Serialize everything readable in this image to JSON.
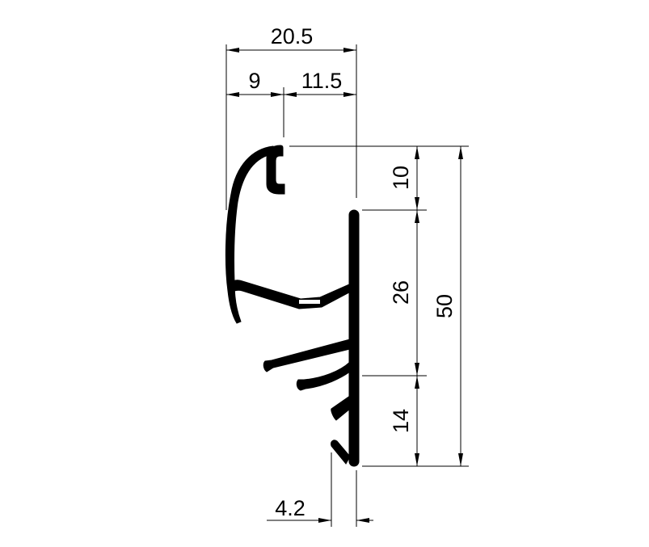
{
  "dimensions": {
    "total_width": "20.5",
    "left_width": "9",
    "right_width": "11.5",
    "top_height": "10",
    "middle_height": "26",
    "bottom_height": "14",
    "total_height": "50",
    "bottom_offset": "4.2"
  }
}
